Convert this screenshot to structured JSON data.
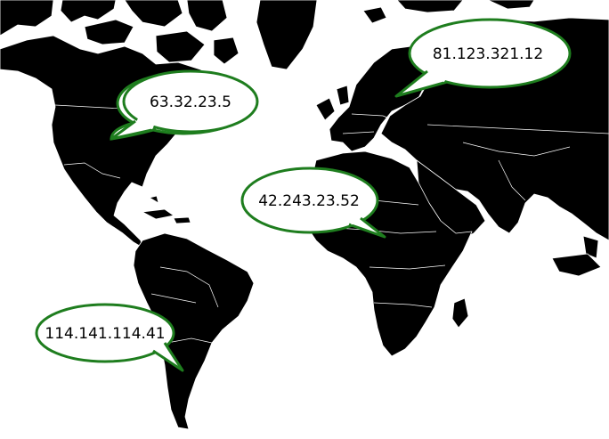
{
  "colors": {
    "land": "#000000",
    "ocean": "#ffffff",
    "borders": "#ffffff",
    "callout_fill": "#ffffff",
    "callout_stroke": "#1e7d1e"
  },
  "callouts": [
    {
      "id": "north-america",
      "label": "63.32.23.5"
    },
    {
      "id": "europe-russia",
      "label": "81.123.321.12"
    },
    {
      "id": "africa",
      "label": "42.243.23.52"
    },
    {
      "id": "south-america",
      "label": "114.141.114.41"
    }
  ]
}
